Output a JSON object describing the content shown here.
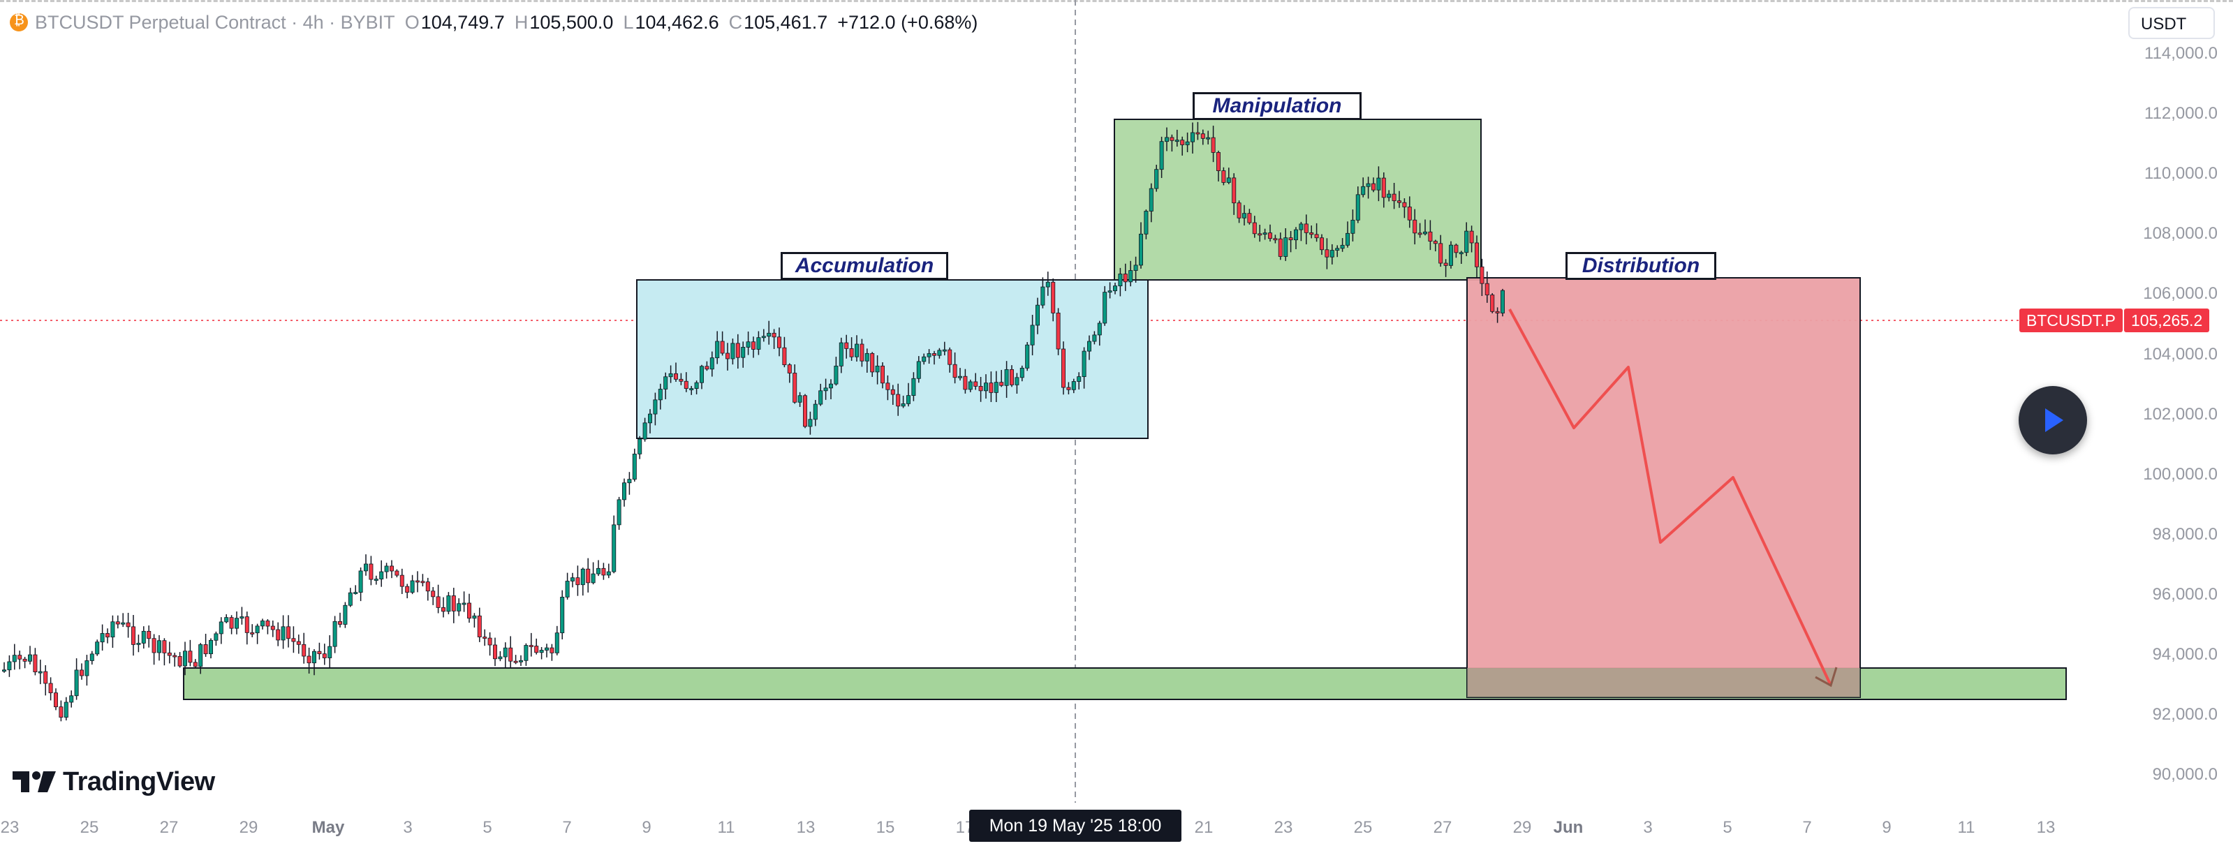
{
  "legend": {
    "symbol": "BTCUSDT Perpetual Contract · 4h · BYBIT",
    "o_label": "O",
    "o_value": "104,749.7",
    "h_label": "H",
    "h_value": "105,500.0",
    "l_label": "L",
    "l_value": "104,462.6",
    "c_label": "C",
    "c_value": "105,461.7",
    "change": "+712.0 (+0.68%)"
  },
  "currency": "USDT",
  "price_ticks": [
    "114,000.0",
    "112,000.0",
    "110,000.0",
    "108,000.0",
    "106,000.0",
    "104,000.0",
    "102,000.0",
    "100,000.0",
    "98,000.0",
    "96,000.0",
    "94,000.0",
    "92,000.0",
    "90,000.0"
  ],
  "price_tag": {
    "symbol": "BTCUSDT.P",
    "price": "105,265.2",
    "price_value": 105265.2
  },
  "time_ticks": [
    "23",
    "25",
    "27",
    "29",
    "May",
    "3",
    "5",
    "7",
    "9",
    "11",
    "13",
    "15",
    "17",
    "21",
    "23",
    "25",
    "27",
    "29",
    "Jun",
    "3",
    "5",
    "7",
    "9",
    "11",
    "13"
  ],
  "crosshair_label": "Mon 19 May '25   18:00",
  "zones": {
    "accumulation": "Accumulation",
    "manipulation": "Manipulation",
    "distribution": "Distribution"
  },
  "brand": "TradingView",
  "colors": {
    "up": "#089981",
    "down": "#f23645",
    "accumulation_fill": "#c6ebf2",
    "manipulation_fill": "#b2daa8",
    "distribution_fill": "#eba0a5",
    "support_fill": "#a5d49b",
    "projection": "#ef4f4f"
  },
  "icons": {
    "play": "play-icon",
    "coin": "bitcoin-icon",
    "logo": "tradingview-logo"
  }
}
